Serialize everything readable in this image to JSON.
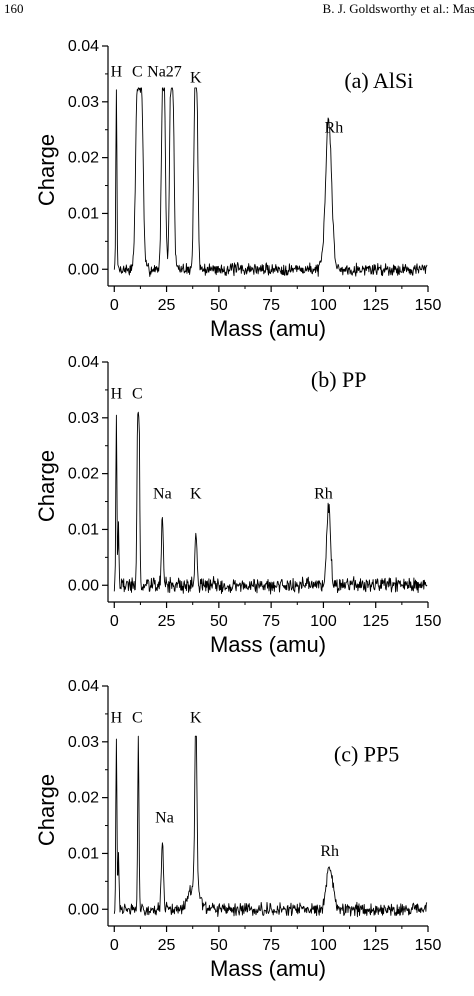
{
  "page": {
    "page_number": "160",
    "running_header": "B. J. Goldsworthy et al.: Mass"
  },
  "chart_data": [
    {
      "type": "line",
      "title": "(a) AlSi",
      "xlabel": "Mass (amu)",
      "ylabel": "Charge",
      "xlim": [
        -3,
        150
      ],
      "ylim": [
        -0.003,
        0.04
      ],
      "xticks": [
        0,
        25,
        50,
        75,
        100,
        125,
        150
      ],
      "yticks": [
        0.0,
        0.01,
        0.02,
        0.03,
        0.04
      ],
      "ytick_labels": [
        "0.00",
        "0.01",
        "0.02",
        "0.03",
        "0.04"
      ],
      "grid": false,
      "saturated_top": 0.0325,
      "baseline_mean": 0.0,
      "noise_amplitude": 0.0009,
      "seed": 7,
      "peaks": [
        {
          "x": 1,
          "height": 0.0325,
          "width": 0.25,
          "flat": 0
        },
        {
          "x": 12,
          "height": 0.0325,
          "width": 0.8,
          "flat": 2.0
        },
        {
          "x": 23.5,
          "height": 0.0325,
          "width": 0.6,
          "flat": 0.8
        },
        {
          "x": 27.5,
          "height": 0.0325,
          "width": 0.6,
          "flat": 1.0
        },
        {
          "x": 39,
          "height": 0.0325,
          "width": 0.6,
          "flat": 0.8
        },
        {
          "x": 102.5,
          "height": 0.027,
          "width": 1.4,
          "flat": 0
        }
      ],
      "peak_labels": [
        {
          "text": "H",
          "x": 1,
          "y": 0.0345
        },
        {
          "text": "C",
          "x": 11,
          "y": 0.0345
        },
        {
          "text": "Na27",
          "x": 24,
          "y": 0.0345
        },
        {
          "text": "K",
          "x": 39,
          "y": 0.0335
        },
        {
          "text": "Rh",
          "x": 105,
          "y": 0.0245
        }
      ],
      "panel_label": {
        "text": "(a) AlSi",
        "x": 110,
        "y": 0.0325
      }
    },
    {
      "type": "line",
      "title": "(b) PP",
      "xlabel": "Mass (amu)",
      "ylabel": "Charge",
      "xlim": [
        -3,
        150
      ],
      "ylim": [
        -0.003,
        0.04
      ],
      "xticks": [
        0,
        25,
        50,
        75,
        100,
        125,
        150
      ],
      "yticks": [
        0.0,
        0.01,
        0.02,
        0.03,
        0.04
      ],
      "ytick_labels": [
        "0.00",
        "0.01",
        "0.02",
        "0.03",
        "0.04"
      ],
      "grid": false,
      "saturated_top": 0.031,
      "baseline_mean": 0.0,
      "noise_amplitude": 0.0011,
      "seed": 19,
      "peaks": [
        {
          "x": 1,
          "height": 0.031,
          "width": 0.25,
          "flat": 0
        },
        {
          "x": 2,
          "height": 0.011,
          "width": 0.25,
          "flat": 0
        },
        {
          "x": 11.5,
          "height": 0.031,
          "width": 0.35,
          "flat": 0.6
        },
        {
          "x": 23,
          "height": 0.0125,
          "width": 0.45,
          "flat": 0
        },
        {
          "x": 39,
          "height": 0.0095,
          "width": 0.5,
          "flat": 0
        },
        {
          "x": 102.5,
          "height": 0.0145,
          "width": 0.9,
          "flat": 0
        }
      ],
      "peak_labels": [
        {
          "text": "H",
          "x": 1,
          "y": 0.0335
        },
        {
          "text": "C",
          "x": 11,
          "y": 0.0335
        },
        {
          "text": "Na",
          "x": 23,
          "y": 0.0155
        },
        {
          "text": "K",
          "x": 39,
          "y": 0.0155
        },
        {
          "text": "Rh",
          "x": 100,
          "y": 0.0155
        }
      ],
      "panel_label": {
        "text": "(b) PP",
        "x": 94,
        "y": 0.0355
      }
    },
    {
      "type": "line",
      "title": "(c) PP5",
      "xlabel": "Mass (amu)",
      "ylabel": "Charge",
      "xlim": [
        -3,
        150
      ],
      "ylim": [
        -0.003,
        0.04
      ],
      "xticks": [
        0,
        25,
        50,
        75,
        100,
        125,
        150
      ],
      "yticks": [
        0.0,
        0.01,
        0.02,
        0.03,
        0.04
      ],
      "ytick_labels": [
        "0.00",
        "0.01",
        "0.02",
        "0.03",
        "0.04"
      ],
      "grid": false,
      "saturated_top": 0.031,
      "baseline_mean": 0.0,
      "noise_amplitude": 0.0009,
      "seed": 31,
      "peaks": [
        {
          "x": 1,
          "height": 0.031,
          "width": 0.25,
          "flat": 0
        },
        {
          "x": 2,
          "height": 0.01,
          "width": 0.25,
          "flat": 0
        },
        {
          "x": 11.5,
          "height": 0.031,
          "width": 0.3,
          "flat": 0
        },
        {
          "x": 23,
          "height": 0.012,
          "width": 0.5,
          "flat": 0
        },
        {
          "x": 39,
          "height": 0.031,
          "width": 0.5,
          "flat": 0
        },
        {
          "x": 38,
          "height": 0.004,
          "width": 2.5,
          "flat": 0
        },
        {
          "x": 103,
          "height": 0.0075,
          "width": 1.5,
          "flat": 0
        }
      ],
      "peak_labels": [
        {
          "text": "H",
          "x": 1,
          "y": 0.0335
        },
        {
          "text": "C",
          "x": 11,
          "y": 0.0335
        },
        {
          "text": "K",
          "x": 39,
          "y": 0.0335
        },
        {
          "text": "Na",
          "x": 24,
          "y": 0.0155
        },
        {
          "text": "Rh",
          "x": 103,
          "y": 0.0095
        }
      ],
      "panel_label": {
        "text": "(c) PP5",
        "x": 105,
        "y": 0.0265
      }
    }
  ]
}
